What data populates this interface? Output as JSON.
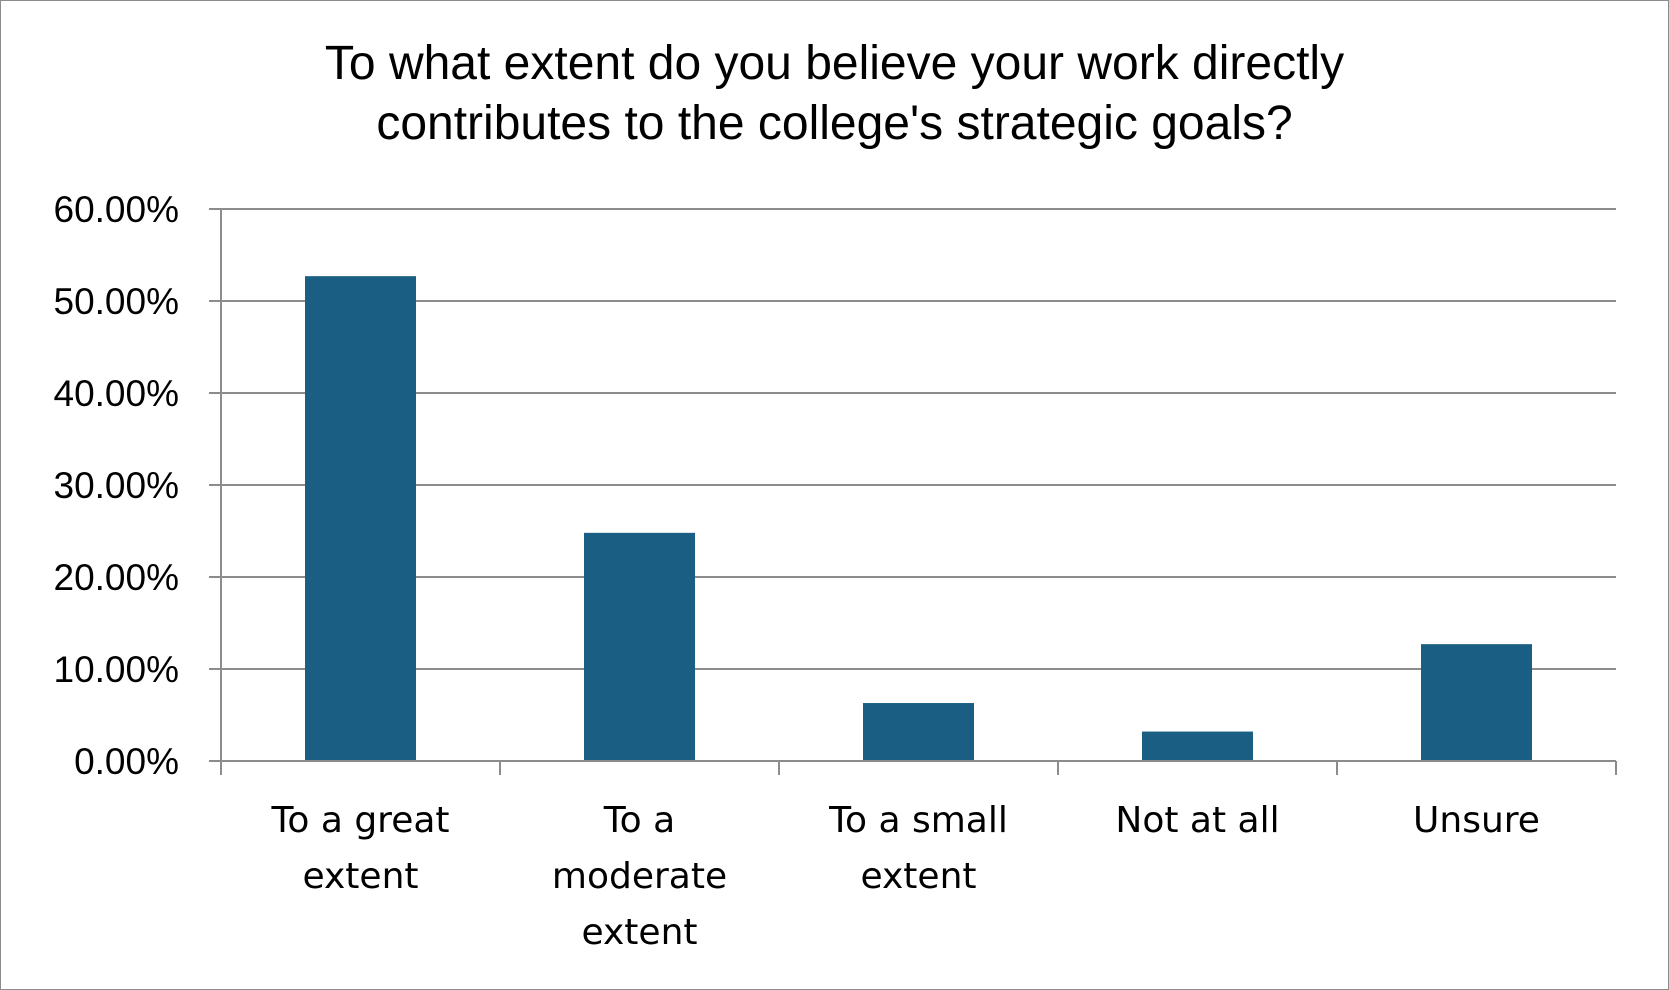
{
  "chart_data": {
    "type": "bar",
    "title_lines": [
      "To what extent do you believe your work directly",
      "contributes to the college's strategic goals?"
    ],
    "categories": [
      [
        "To a great",
        "extent"
      ],
      [
        "To a",
        "moderate",
        "extent"
      ],
      [
        "To a small",
        "extent"
      ],
      [
        "Not at all"
      ],
      [
        "Unsure"
      ]
    ],
    "values": [
      52.7,
      24.8,
      6.3,
      3.2,
      12.7
    ],
    "ylim": [
      0,
      60
    ],
    "yticks": [
      0,
      10,
      20,
      30,
      40,
      50,
      60
    ],
    "ytick_labels": [
      "0.00%",
      "10.00%",
      "20.00%",
      "30.00%",
      "40.00%",
      "50.00%",
      "60.00%"
    ],
    "xlabel": "",
    "ylabel": "",
    "grid": true,
    "legend": "none",
    "bar_color": "#1a5f83",
    "grid_color": "#8c8c8c"
  }
}
